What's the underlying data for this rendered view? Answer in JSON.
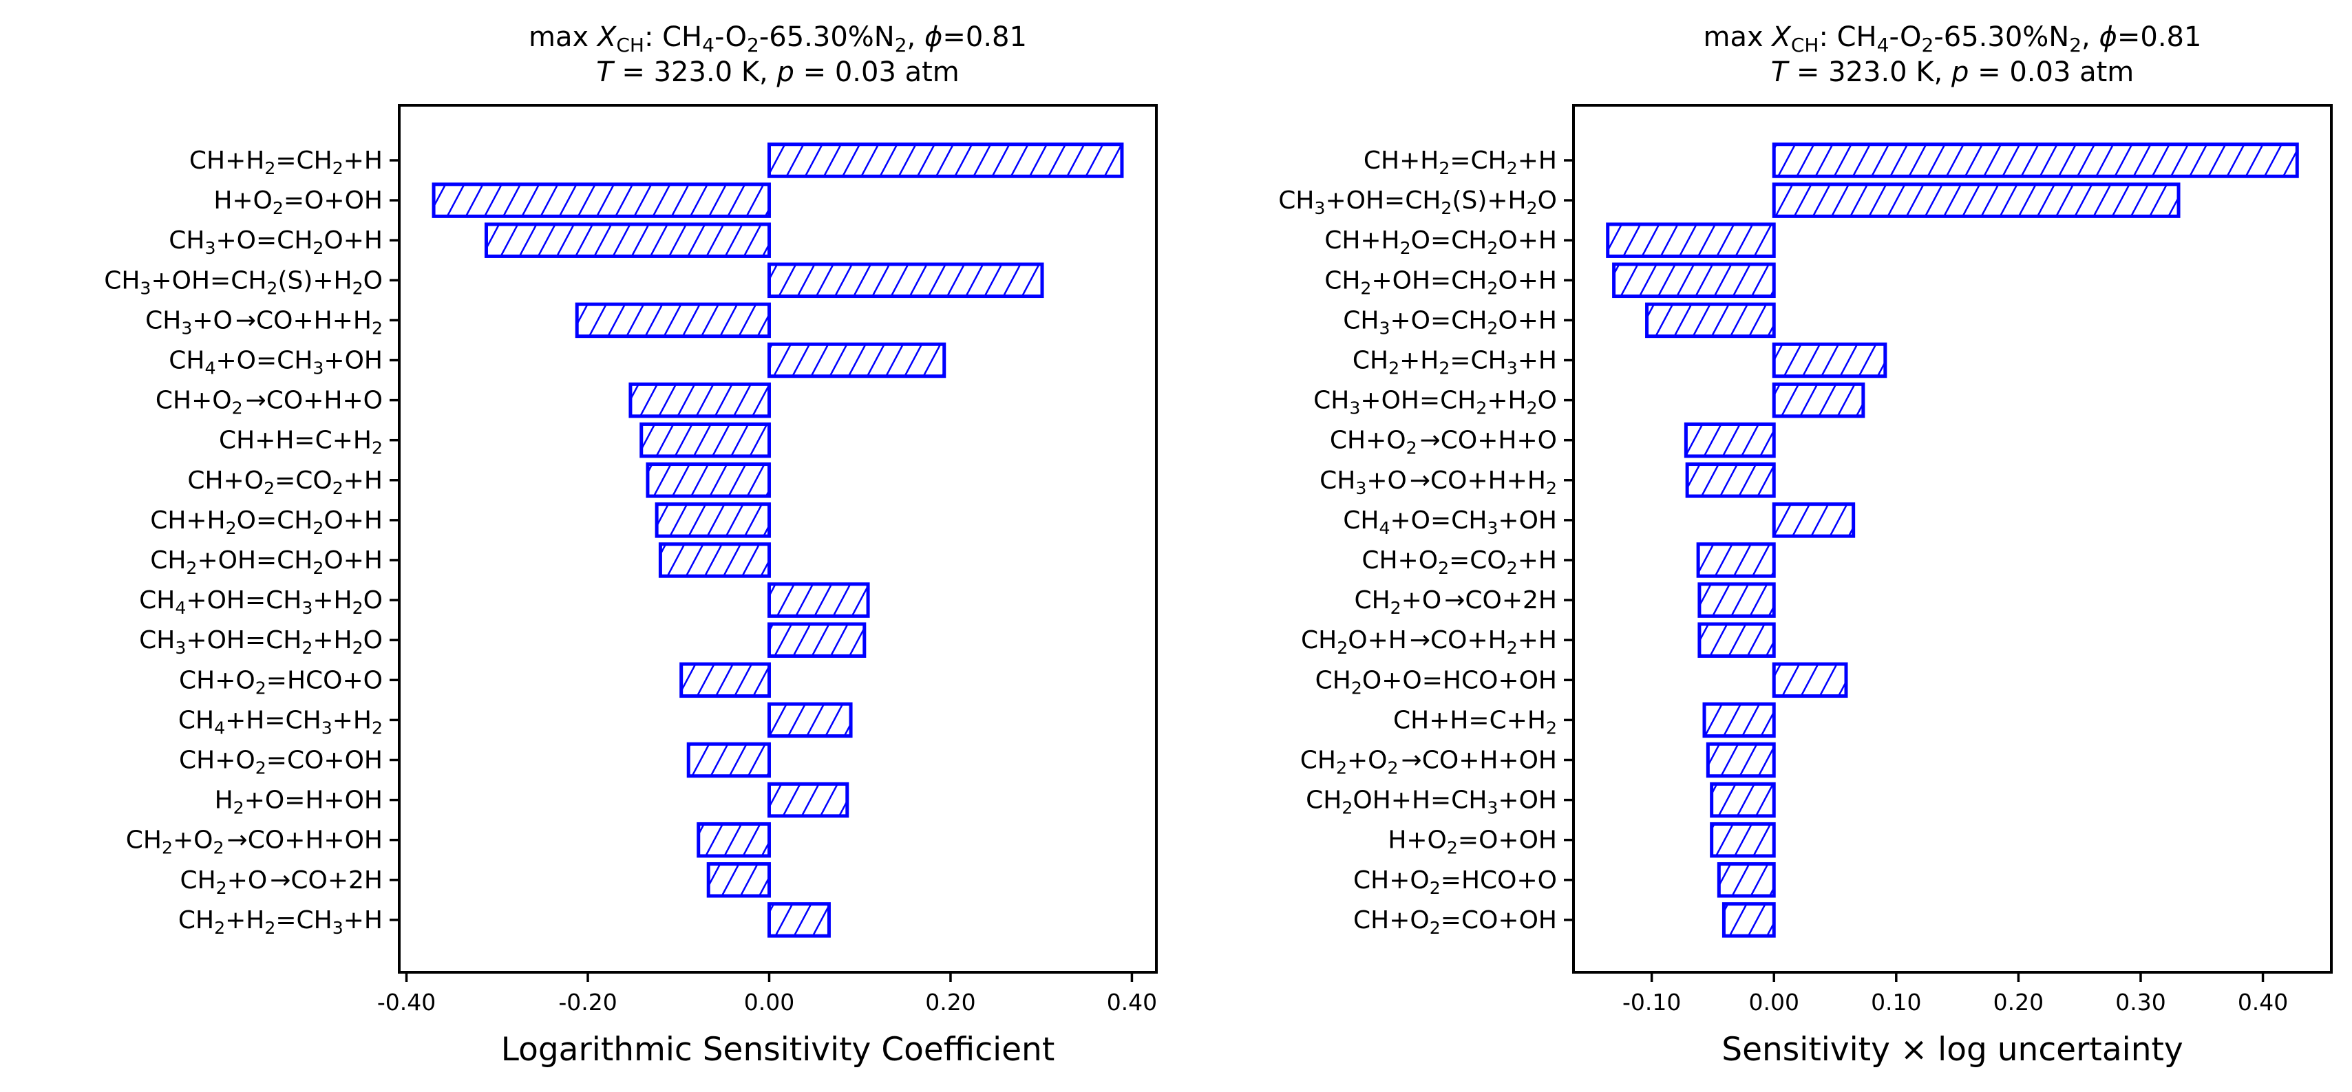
{
  "colors": {
    "bar_edge": "#0000ff",
    "hatch": "#0000ff",
    "axes": "#000000"
  },
  "chart_data": [
    {
      "type": "bar",
      "orientation": "horizontal",
      "title_line1": {
        "prefix": "max ",
        "var": "X",
        "var_sub": "CH",
        "mid": ": CH4-O2-65.30%N2, ",
        "phi": "ϕ",
        "phi_val": "=0.81"
      },
      "title_line2": {
        "t": "T",
        "t_val": " = 323.0 K, ",
        "p": "p",
        "p_val": " = 0.03 atm"
      },
      "xlabel": "Logarithmic Sensitivity Coefficient",
      "xlim": [
        -0.408,
        0.427
      ],
      "xticks": [
        -0.4,
        -0.2,
        0.0,
        0.2,
        0.4
      ],
      "xtick_labels": [
        "-0.40",
        "-0.20",
        "0.00",
        "0.20",
        "0.40"
      ],
      "categories": [
        "CH+H2=CH2+H",
        "H+O2=O+OH",
        "CH3+O=CH2O+H",
        "CH3+OH=CH2(S)+H2O",
        "CH3+O→CO+H+H2",
        "CH4+O=CH3+OH",
        "CH+O2→CO+H+O",
        "CH+H=C+H2",
        "CH+O2=CO2+H",
        "CH+H2O=CH2O+H",
        "CH2+OH=CH2O+H",
        "CH4+OH=CH3+H2O",
        "CH3+OH=CH2+H2O",
        "CH+O2=HCO+O",
        "CH4+H=CH3+H2",
        "CH+O2=CO+OH",
        "H2+O=H+OH",
        "CH2+O2→CO+H+OH",
        "CH2+O→CO+2H",
        "CH2+H2=CH3+H"
      ],
      "values": [
        0.389,
        -0.37,
        -0.312,
        0.301,
        -0.212,
        0.193,
        -0.153,
        -0.141,
        -0.134,
        -0.124,
        -0.12,
        0.109,
        0.105,
        -0.097,
        0.09,
        -0.089,
        0.086,
        -0.078,
        -0.067,
        0.066
      ],
      "hatch": "//",
      "grid": false
    },
    {
      "type": "bar",
      "orientation": "horizontal",
      "title_line1": {
        "prefix": "max ",
        "var": "X",
        "var_sub": "CH",
        "mid": ": CH4-O2-65.30%N2, ",
        "phi": "ϕ",
        "phi_val": "=0.81"
      },
      "title_line2": {
        "t": "T",
        "t_val": " = 323.0 K, ",
        "p": "p",
        "p_val": " = 0.03 atm"
      },
      "xlabel": "Sensitivity × log uncertainty",
      "xlim": [
        -0.164,
        0.456
      ],
      "xticks": [
        -0.1,
        0.0,
        0.1,
        0.2,
        0.3,
        0.4
      ],
      "xtick_labels": [
        "-0.10",
        "0.00",
        "0.10",
        "0.20",
        "0.30",
        "0.40"
      ],
      "categories": [
        "CH+H2=CH2+H",
        "CH3+OH=CH2(S)+H2O",
        "CH+H2O=CH2O+H",
        "CH2+OH=CH2O+H",
        "CH3+O=CH2O+H",
        "CH2+H2=CH3+H",
        "CH3+OH=CH2+H2O",
        "CH+O2→CO+H+O",
        "CH3+O→CO+H+H2",
        "CH4+O=CH3+OH",
        "CH+O2=CO2+H",
        "CH2+O→CO+2H",
        "CH2O+H→CO+H2+H",
        "CH2O+O=HCO+OH",
        "CH+H=C+H2",
        "CH2+O2→CO+H+OH",
        "CH2OH+H=CH3+OH",
        "H+O2=O+OH",
        "CH+O2=HCO+O",
        "CH+O2=CO+OH"
      ],
      "values": [
        0.428,
        0.331,
        -0.136,
        -0.131,
        -0.104,
        0.091,
        0.073,
        -0.072,
        -0.071,
        0.065,
        -0.062,
        -0.061,
        -0.061,
        0.059,
        -0.057,
        -0.054,
        -0.051,
        -0.051,
        -0.045,
        -0.041
      ],
      "hatch": "//",
      "grid": false
    }
  ]
}
